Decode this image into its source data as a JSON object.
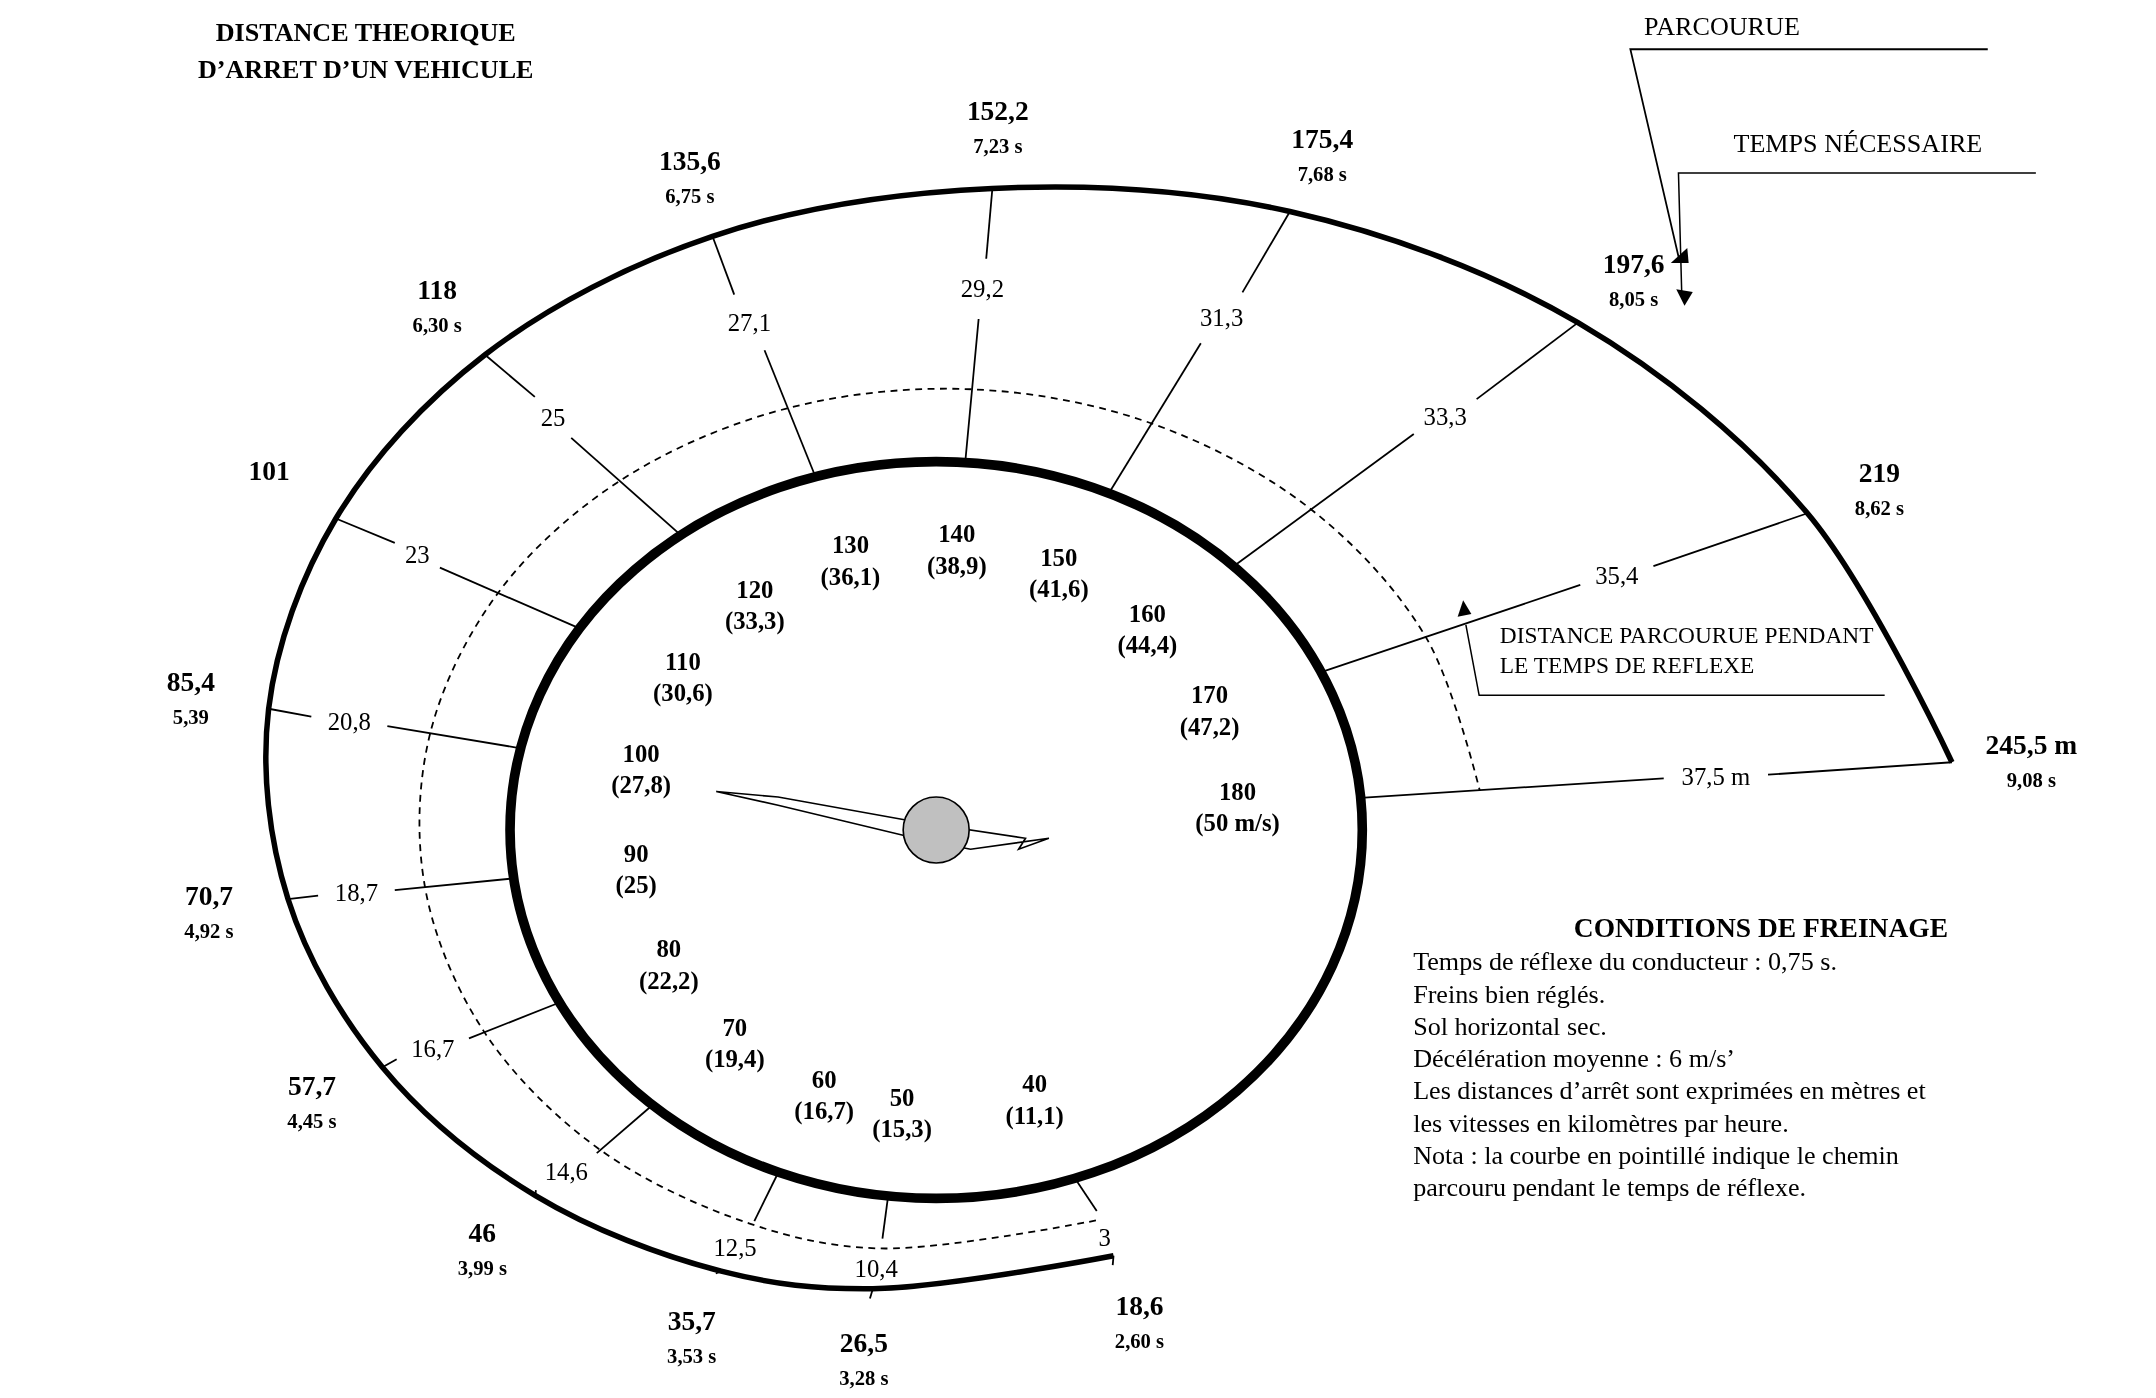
{
  "chart_data": {
    "type": "other",
    "title": "DISTANCE THEORIQUE D’ARRET D’UN VEHICULE",
    "categories": [
      "40",
      "50",
      "60",
      "70",
      "80",
      "90",
      "100",
      "110",
      "120",
      "130",
      "140",
      "150",
      "160",
      "170",
      "180"
    ],
    "series": [
      {
        "values": [
          11.1,
          15.3,
          16.7,
          19.4,
          22.2,
          25,
          27.8,
          30.6,
          33.3,
          36.1,
          38.9,
          41.6,
          44.4,
          47.2,
          50
        ],
        "value_labels": [
          "(11,1)",
          "(15,3)",
          "(16,7)",
          "(19,4)",
          "(22,2)",
          "(25)",
          "(27,8)",
          "(30,6)",
          "(33,3)",
          "(36,1)",
          "(38,9)",
          "(41,6)",
          "(44,4)",
          "(47,2)",
          "(50 m/s)"
        ]
      },
      {
        "values": [
          3,
          10.4,
          12.5,
          14.6,
          16.7,
          18.7,
          20.8,
          23,
          25,
          27.1,
          29.2,
          31.3,
          33.3,
          35.4,
          37.5
        ],
        "value_labels": [
          "3",
          "10,4",
          "12,5",
          "14,6",
          "16,7",
          "18,7",
          "20,8",
          "23",
          "25",
          "27,1",
          "29,2",
          "31,3",
          "33,3",
          "35,4",
          "37,5 m"
        ]
      },
      {
        "values": [
          18.6,
          26.5,
          35.7,
          46,
          57.7,
          70.7,
          85.4,
          101,
          118,
          135.6,
          152.2,
          175.4,
          197.6,
          219,
          245.5
        ],
        "value_labels": [
          "18,6",
          "26,5",
          "35,7",
          "46",
          "57,7",
          "70,7",
          "85,4",
          "101",
          "118",
          "135,6",
          "152,2",
          "175,4",
          "197,6",
          "219",
          "245,5 m"
        ]
      },
      {
        "values": [
          2.6,
          3.28,
          3.53,
          3.99,
          4.45,
          4.92,
          5.39,
          null,
          6.3,
          6.75,
          7.23,
          7.68,
          8.05,
          8.62,
          9.08
        ],
        "value_labels": [
          "2,60 s",
          "3,28 s",
          "3,53 s",
          "3,99 s",
          "4,45 s",
          "4,92 s",
          "5,39",
          null,
          "6,30 s",
          "6,75 s",
          "7,23 s",
          "7,68 s",
          "8,05 s",
          "8,62 s",
          "9,08 s"
        ]
      }
    ],
    "annotations": [
      "PARCOURUE",
      "TEMPS NÉCESSAIRE",
      "DISTANCE PARCOURUE PENDANT LE TEMPS DE REFLEXE",
      "CONDITIONS DE FREINAGE",
      "Temps de réflexe du conducteur : 0,75 s.",
      "Freins bien réglés.",
      "Sol horizontal sec.",
      "Décélération moyenne : 6 m/s’",
      "Les distances d’arrêt sont exprimées en mètres et les vitesses en kilomètres par heure.",
      "Nota : la courbe en pointillé indique le chemin parcouru pendant le temps de réflexe."
    ]
  }
}
